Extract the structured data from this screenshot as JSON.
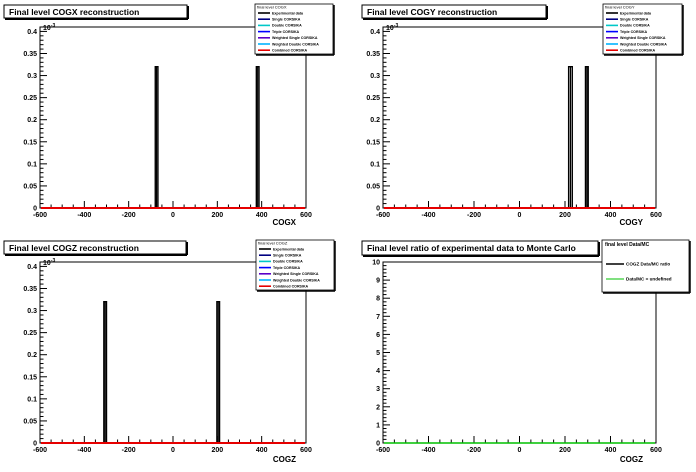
{
  "colors": {
    "experimental": "#000000",
    "single": "#000080",
    "double": "#00c8c8",
    "triple": "#0000ff",
    "weighted_single": "#5a00c8",
    "weighted_double": "#00b4ff",
    "combined": "#e60000",
    "ratio": "#000000",
    "undefined": "#00c000",
    "frame": "#000000"
  },
  "chart_data": [
    {
      "type": "line",
      "title": "Final level COGX reconstruction",
      "xlabel": "COGX",
      "ylabel": "",
      "xlim": [
        -600,
        600
      ],
      "ylim": [
        0,
        0.41
      ],
      "x_ticks": [
        "-600",
        "-400",
        "-200",
        "0",
        "200",
        "400",
        "600"
      ],
      "y_ticks": [
        "0",
        "0.05",
        "0.1",
        "0.15",
        "0.2",
        "0.25",
        "0.3",
        "0.35",
        "0.4"
      ],
      "y_exponent": "10",
      "y_exponent_power": "-3",
      "legend": {
        "title": "final level COGX",
        "entries": [
          "Experimental data",
          "Single CORSIKA",
          "Double CORSIKA",
          "Triple CORSIKA",
          "Weighted Single CORSIKA",
          "Weighted Double CORSIKA",
          "Combined CORSIKA"
        ]
      },
      "spikes": [
        {
          "x0": -80,
          "x1": -68,
          "value": 0.32
        },
        {
          "x0": 376,
          "x1": 388,
          "value": 0.32
        }
      ],
      "series": [
        {
          "name": "Experimental data",
          "values": [
            0,
            0
          ]
        },
        {
          "name": "Combined CORSIKA",
          "values": [
            0,
            0
          ]
        }
      ]
    },
    {
      "type": "line",
      "title": "Final level COGY reconstruction",
      "xlabel": "COGY",
      "ylabel": "",
      "xlim": [
        -600,
        600
      ],
      "ylim": [
        0,
        0.41
      ],
      "x_ticks": [
        "-600",
        "-400",
        "-200",
        "0",
        "200",
        "400",
        "600"
      ],
      "y_ticks": [
        "0",
        "0.05",
        "0.1",
        "0.15",
        "0.2",
        "0.25",
        "0.3",
        "0.35",
        "0.4"
      ],
      "y_exponent": "10",
      "y_exponent_power": "-3",
      "legend": {
        "title": "final level COGY",
        "entries": [
          "Experimental data",
          "Single CORSIKA",
          "Double CORSIKA",
          "Triple CORSIKA",
          "Weighted Single CORSIKA",
          "Weighted Double CORSIKA",
          "Combined CORSIKA"
        ]
      },
      "spikes": [
        {
          "x0": 216,
          "x1": 232,
          "value": 0.32
        },
        {
          "x0": 290,
          "x1": 302,
          "value": 0.32
        }
      ],
      "series": [
        {
          "name": "Experimental data",
          "values": [
            0,
            0
          ]
        },
        {
          "name": "Combined CORSIKA",
          "values": [
            0,
            0
          ]
        }
      ]
    },
    {
      "type": "line",
      "title": "Final level COGZ reconstruction",
      "xlabel": "COGZ",
      "ylabel": "",
      "xlim": [
        -600,
        600
      ],
      "ylim": [
        0,
        0.41
      ],
      "x_ticks": [
        "-600",
        "-400",
        "-200",
        "0",
        "200",
        "400",
        "600"
      ],
      "y_ticks": [
        "0",
        "0.05",
        "0.1",
        "0.15",
        "0.2",
        "0.25",
        "0.3",
        "0.35",
        "0.4"
      ],
      "y_exponent": "10",
      "y_exponent_power": "-3",
      "legend": {
        "title": "final level COGZ",
        "entries": [
          "Experimental data",
          "Single CORSIKA",
          "Double CORSIKA",
          "Triple CORSIKA",
          "Weighted Single CORSIKA",
          "Weighted Double CORSIKA",
          "Combined CORSIKA"
        ]
      },
      "spikes": [
        {
          "x0": -312,
          "x1": -300,
          "value": 0.32
        },
        {
          "x0": 198,
          "x1": 210,
          "value": 0.32
        }
      ],
      "series": [
        {
          "name": "Experimental data",
          "values": [
            0,
            0
          ]
        },
        {
          "name": "Combined CORSIKA",
          "values": [
            0,
            0
          ]
        }
      ]
    },
    {
      "type": "line",
      "title": "Final level ratio of experimental data to Monte Carlo",
      "xlabel": "COGZ",
      "ylabel": "",
      "xlim": [
        -600,
        600
      ],
      "ylim": [
        0,
        10
      ],
      "x_ticks": [
        "-600",
        "-400",
        "-200",
        "0",
        "200",
        "400",
        "600"
      ],
      "y_ticks": [
        "0",
        "1",
        "2",
        "3",
        "4",
        "5",
        "6",
        "7",
        "8",
        "9",
        "10"
      ],
      "legend": {
        "title": "final level Data/MC",
        "entries": [
          "COGZ Data/MC ratio",
          "Data/MC = undefined"
        ]
      },
      "series": [
        {
          "name": "Data/MC = undefined",
          "values": [
            0,
            0
          ]
        }
      ]
    }
  ]
}
